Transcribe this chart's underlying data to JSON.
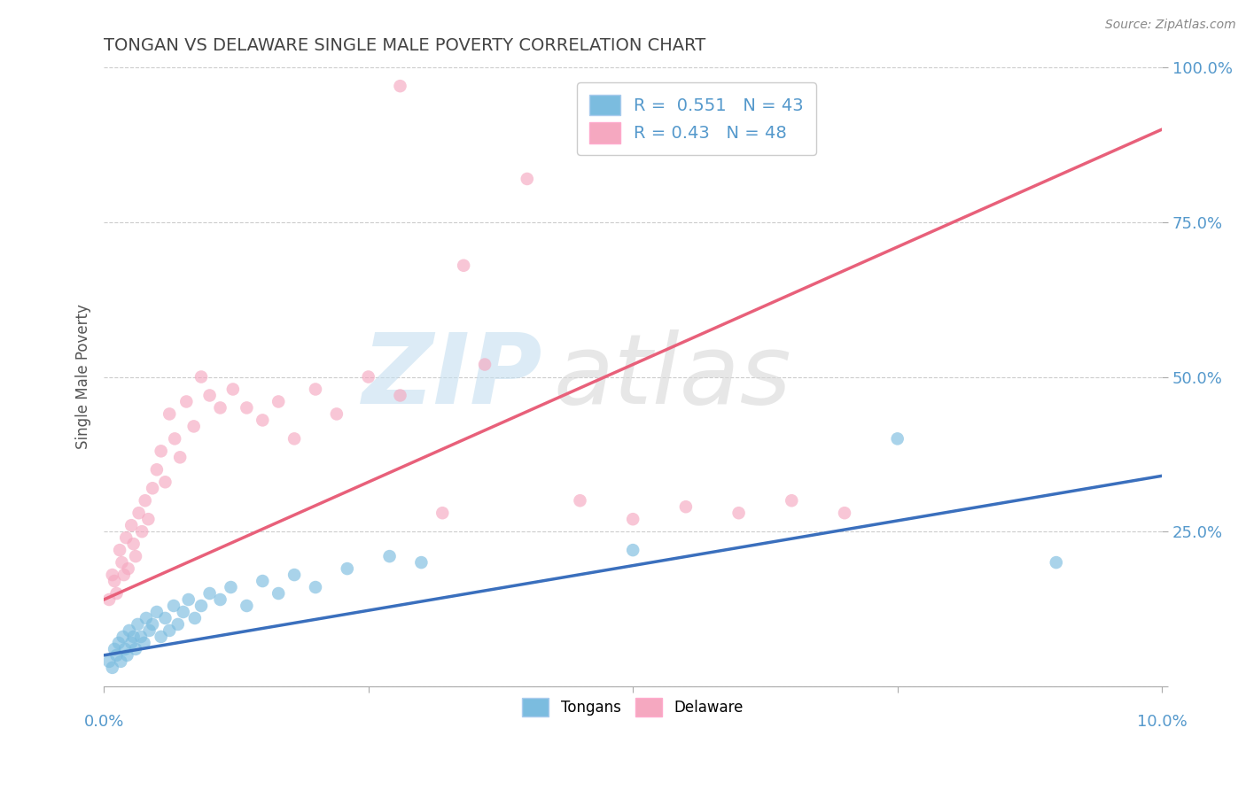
{
  "title": "TONGAN VS DELAWARE SINGLE MALE POVERTY CORRELATION CHART",
  "source": "Source: ZipAtlas.com",
  "ylabel": "Single Male Poverty",
  "xmin": 0.0,
  "xmax": 10.0,
  "ymin": 0.0,
  "ymax": 100.0,
  "blue_label": "Tongans",
  "pink_label": "Delaware",
  "blue_R": 0.551,
  "blue_N": 43,
  "pink_R": 0.43,
  "pink_N": 48,
  "blue_color": "#7bbcdf",
  "pink_color": "#f5a8c0",
  "blue_line_color": "#3a6fbd",
  "pink_line_color": "#e8607a",
  "background_color": "#ffffff",
  "grid_color": "#cccccc",
  "title_color": "#444444",
  "axis_color": "#5599cc",
  "blue_x": [
    0.05,
    0.08,
    0.1,
    0.12,
    0.14,
    0.16,
    0.18,
    0.2,
    0.22,
    0.24,
    0.26,
    0.28,
    0.3,
    0.32,
    0.35,
    0.38,
    0.4,
    0.43,
    0.46,
    0.5,
    0.54,
    0.58,
    0.62,
    0.66,
    0.7,
    0.75,
    0.8,
    0.86,
    0.92,
    1.0,
    1.1,
    1.2,
    1.35,
    1.5,
    1.65,
    1.8,
    2.0,
    2.3,
    2.7,
    3.0,
    5.0,
    7.5,
    9.0
  ],
  "blue_y": [
    4,
    3,
    6,
    5,
    7,
    4,
    8,
    6,
    5,
    9,
    7,
    8,
    6,
    10,
    8,
    7,
    11,
    9,
    10,
    12,
    8,
    11,
    9,
    13,
    10,
    12,
    14,
    11,
    13,
    15,
    14,
    16,
    13,
    17,
    15,
    18,
    16,
    19,
    21,
    20,
    22,
    40,
    20
  ],
  "pink_x": [
    0.05,
    0.08,
    0.1,
    0.12,
    0.15,
    0.17,
    0.19,
    0.21,
    0.23,
    0.26,
    0.28,
    0.3,
    0.33,
    0.36,
    0.39,
    0.42,
    0.46,
    0.5,
    0.54,
    0.58,
    0.62,
    0.67,
    0.72,
    0.78,
    0.85,
    0.92,
    1.0,
    1.1,
    1.22,
    1.35,
    1.5,
    1.65,
    1.8,
    2.0,
    2.2,
    2.5,
    2.8,
    3.2,
    3.6,
    4.0,
    4.5,
    5.0,
    5.5,
    6.0,
    6.5,
    7.0,
    3.4,
    2.8
  ],
  "pink_y": [
    14,
    18,
    17,
    15,
    22,
    20,
    18,
    24,
    19,
    26,
    23,
    21,
    28,
    25,
    30,
    27,
    32,
    35,
    38,
    33,
    44,
    40,
    37,
    46,
    42,
    50,
    47,
    45,
    48,
    45,
    43,
    46,
    40,
    48,
    44,
    50,
    47,
    28,
    52,
    82,
    30,
    27,
    29,
    28,
    30,
    28,
    68,
    97
  ],
  "blue_trend_x": [
    0.0,
    10.0
  ],
  "blue_trend_y": [
    5.0,
    34.0
  ],
  "pink_trend_x": [
    0.0,
    10.0
  ],
  "pink_trend_y": [
    14.0,
    90.0
  ]
}
